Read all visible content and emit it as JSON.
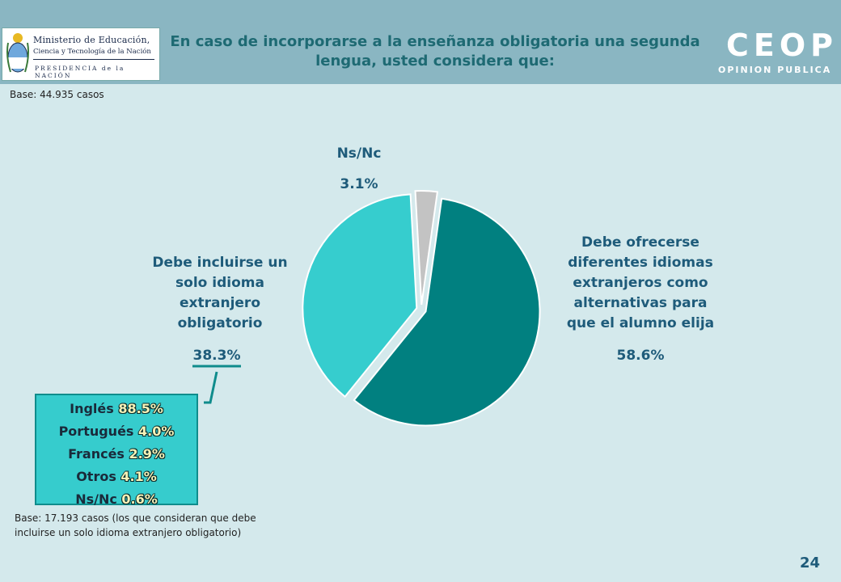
{
  "header": {
    "title": "En caso de incorporarse a la enseñanza obligatoria una segunda lengua, usted considera que:",
    "logo": {
      "line1": "Ministerio de Educación,",
      "line2": "Ciencia y Tecnología de la Nación",
      "line3": "PRESIDENCIA de la NACIÓN"
    },
    "brand": {
      "name": "CEOP",
      "tagline": "OPINION PUBLICA"
    }
  },
  "base_top": "Base: 44.935 casos",
  "chart_data": {
    "type": "pie",
    "slices": [
      {
        "label": "Debe ofrecerse diferentes idiomas extranjeros como alternativas para que el alumno elija",
        "value": 58.6,
        "value_label": "58.6%",
        "color": "#018080"
      },
      {
        "label": "Debe incluirse un solo idioma extranjero obligatorio",
        "value": 38.3,
        "value_label": "38.3%",
        "color": "#36cdce"
      },
      {
        "label": "Ns/Nc",
        "value": 3.1,
        "value_label": "3.1%",
        "color": "#c3c3c3"
      }
    ],
    "exploded": true,
    "breakdown": {
      "of_slice": "Debe incluirse un solo idioma extranjero obligatorio",
      "items": [
        {
          "label": "Inglés",
          "value_label": "88.5%",
          "value": 88.5
        },
        {
          "label": "Portugués",
          "value_label": "4.0%",
          "value": 4.0
        },
        {
          "label": "Francés",
          "value_label": "2.9%",
          "value": 2.9
        },
        {
          "label": "Otros",
          "value_label": "4.1%",
          "value": 4.1
        },
        {
          "label": "Ns/Nc",
          "value_label": "0.6%",
          "value": 0.6
        }
      ]
    }
  },
  "labels": {
    "nsnc": "Ns/Nc",
    "nsnc_value": "3.1%",
    "solo_line1": "Debe incluirse un",
    "solo_line2": "solo idioma",
    "solo_line3": "extranjero",
    "solo_line4": "obligatorio",
    "solo_value": "38.3%",
    "dif_line1": "Debe ofrecerse",
    "dif_line2": "diferentes idiomas",
    "dif_line3": "extranjeros como",
    "dif_line4": "alternativas para",
    "dif_line5": "que el alumno elija",
    "dif_value": "58.6%"
  },
  "base_bottom": {
    "line1": "Base: 17.193 casos (los que consideran que debe",
    "line2": "incluirse un solo idioma extranjero obligatorio)"
  },
  "page_number": "24",
  "colors": {
    "background": "#d4e9ec",
    "header": "#8ab6c2",
    "title": "#1e6a73",
    "label": "#1e5b7a"
  }
}
